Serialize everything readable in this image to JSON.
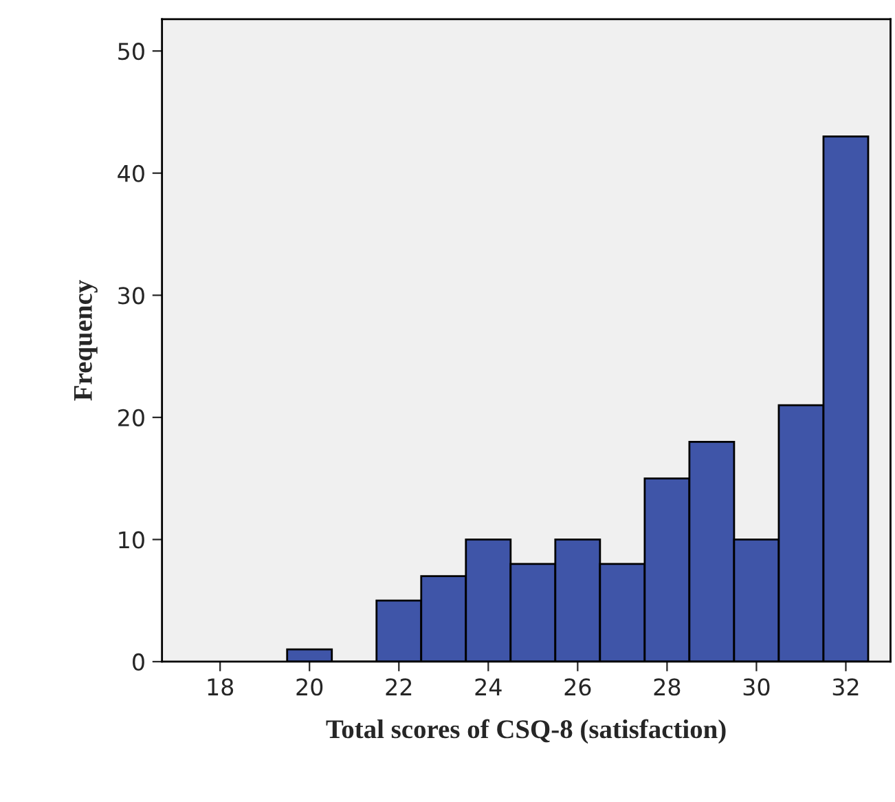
{
  "chart_data": {
    "type": "histogram",
    "xlabel": "Total scores of CSQ-8 (satisfaction)",
    "ylabel": "Frequency",
    "bins": [
      19.5,
      20.5,
      21.5,
      22.5,
      23.5,
      24.5,
      25.5,
      26.5,
      27.5,
      28.5,
      29.5,
      30.5,
      31.5,
      32.5
    ],
    "values": [
      1,
      0,
      5,
      7,
      10,
      8,
      10,
      8,
      15,
      18,
      10,
      21,
      43
    ],
    "color": "#3f55a8",
    "xlim": [
      16.7,
      33.0
    ],
    "xticks": [
      18,
      20,
      22,
      24,
      26,
      28,
      30,
      32
    ],
    "ylim": [
      0,
      52.6
    ],
    "yticks": [
      0,
      10,
      20,
      30,
      40,
      50
    ],
    "grid": false,
    "legend": false
  }
}
